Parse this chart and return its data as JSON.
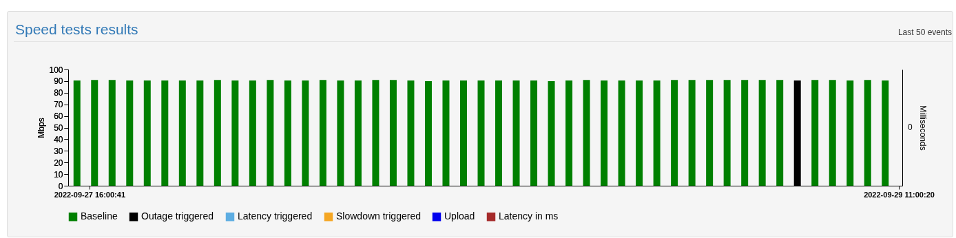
{
  "chart_data": {
    "type": "bar",
    "title": "Speed tests results",
    "annotations": [
      "Last 50 events",
      "0"
    ],
    "ylabel": "Mbps",
    "y2label": "Milliseconds",
    "x": [
      "2022-09-27T15:21",
      "2022-09-27T16:17",
      "2022-09-27T17:13",
      "2022-09-27T18:09",
      "2022-09-27T19:05",
      "2022-09-27T20:01",
      "2022-09-27T20:57",
      "2022-09-27T21:53",
      "2022-09-27T22:49",
      "2022-09-27T23:45",
      "2022-09-28T00:41",
      "2022-09-28T01:37",
      "2022-09-28T02:33",
      "2022-09-28T03:29",
      "2022-09-28T04:25",
      "2022-09-28T05:21",
      "2022-09-28T06:17",
      "2022-09-28T07:13",
      "2022-09-28T08:09",
      "2022-09-28T09:05",
      "2022-09-28T10:01",
      "2022-09-28T10:57",
      "2022-09-28T11:53",
      "2022-09-28T12:49",
      "2022-09-28T13:45",
      "2022-09-28T14:41",
      "2022-09-28T15:37",
      "2022-09-28T16:33",
      "2022-09-28T17:29",
      "2022-09-28T18:25",
      "2022-09-28T19:21",
      "2022-09-28T20:17",
      "2022-09-28T21:13",
      "2022-09-28T22:09",
      "2022-09-28T23:05",
      "2022-09-29T00:01",
      "2022-09-29T00:57",
      "2022-09-29T01:53",
      "2022-09-29T02:49",
      "2022-09-29T03:45",
      "2022-09-29T04:41",
      "2022-09-29T05:37",
      "2022-09-29T06:33",
      "2022-09-29T07:29",
      "2022-09-29T08:25",
      "2022-09-29T09:21",
      "2022-09-29T10:17"
    ],
    "series": [
      {
        "name": "Baseline",
        "color": "#008000",
        "values": [
          90.5,
          91,
          91,
          90.5,
          90.5,
          90.5,
          90.5,
          90.5,
          91,
          90.5,
          90.5,
          91,
          90.5,
          90.5,
          91,
          90.5,
          90.5,
          91,
          91,
          90.5,
          90,
          90.5,
          90.5,
          90.5,
          90.5,
          90.5,
          90.5,
          90,
          90.5,
          91,
          90.5,
          90.5,
          90.5,
          90.5,
          91,
          91,
          91,
          91,
          91,
          91,
          91,
          null,
          91,
          91,
          90.5,
          91,
          90.5
        ]
      },
      {
        "name": "Outage triggered",
        "color": "#000000",
        "values": [
          null,
          null,
          null,
          null,
          null,
          null,
          null,
          null,
          null,
          null,
          null,
          null,
          null,
          null,
          null,
          null,
          null,
          null,
          null,
          null,
          null,
          null,
          null,
          null,
          null,
          null,
          null,
          null,
          null,
          null,
          null,
          null,
          null,
          null,
          null,
          null,
          null,
          null,
          null,
          null,
          null,
          90.5,
          null,
          null,
          null,
          null,
          null
        ]
      },
      {
        "name": "Latency triggered",
        "color": "#5dade2",
        "values": [
          null,
          null,
          null,
          null,
          null,
          null,
          null,
          null,
          null,
          null,
          null,
          null,
          null,
          null,
          null,
          null,
          null,
          null,
          null,
          null,
          null,
          null,
          null,
          null,
          null,
          null,
          null,
          null,
          null,
          null,
          null,
          null,
          null,
          null,
          null,
          null,
          null,
          null,
          null,
          null,
          null,
          null,
          null,
          null,
          null,
          null,
          null
        ]
      },
      {
        "name": "Slowdown triggered",
        "color": "#f5a623",
        "values": [
          null,
          null,
          null,
          null,
          null,
          null,
          null,
          null,
          null,
          null,
          null,
          null,
          null,
          null,
          null,
          null,
          null,
          null,
          null,
          null,
          null,
          null,
          null,
          null,
          null,
          null,
          null,
          null,
          null,
          null,
          null,
          null,
          null,
          null,
          null,
          null,
          null,
          null,
          null,
          null,
          null,
          null,
          null,
          null,
          null,
          null,
          null
        ]
      },
      {
        "name": "Upload",
        "color": "#0000ee",
        "type": "line",
        "values": [
          null,
          null,
          null,
          null,
          null,
          null,
          null,
          null,
          null,
          null,
          null,
          null,
          null,
          null,
          null,
          null,
          null,
          null,
          null,
          null,
          null,
          null,
          null,
          null,
          null,
          null,
          null,
          null,
          null,
          null,
          null,
          null,
          null,
          null,
          null,
          null,
          null,
          null,
          null,
          null,
          null,
          null,
          null,
          null,
          null,
          null,
          null
        ]
      },
      {
        "name": "Latency in ms",
        "color": "#a52a2a",
        "type": "line",
        "axis": "y2",
        "values": [
          null,
          null,
          null,
          null,
          null,
          null,
          null,
          null,
          null,
          null,
          null,
          null,
          null,
          null,
          null,
          null,
          null,
          null,
          null,
          null,
          null,
          null,
          null,
          null,
          null,
          null,
          null,
          null,
          null,
          null,
          null,
          null,
          null,
          null,
          null,
          null,
          null,
          null,
          null,
          null,
          null,
          null,
          null,
          null,
          null,
          null,
          null
        ]
      }
    ],
    "xlim": [
      "2022-09-27T15:04",
      "2022-09-29T11:00:20"
    ],
    "xticks": [
      {
        "value": "2022-09-27T16:00:41",
        "label": "2022-09-27 16:00:41"
      },
      {
        "value": "2022-09-29T11:00:20",
        "label": "2022-09-29 11:00:20"
      }
    ],
    "ylim": [
      0,
      100
    ],
    "yticks": [
      0,
      10,
      20,
      30,
      40,
      50,
      60,
      70,
      80,
      90,
      100
    ],
    "grid": false,
    "legend": "bottom"
  }
}
